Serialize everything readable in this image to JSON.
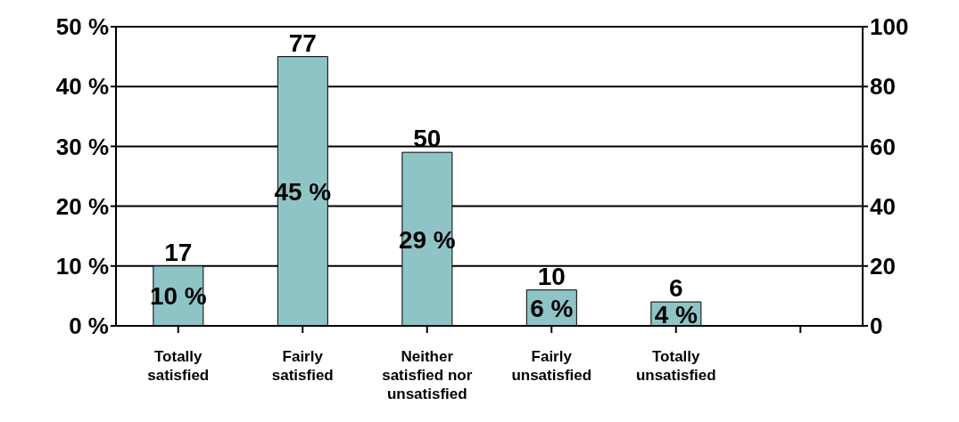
{
  "chart_data": {
    "type": "bar",
    "categories": [
      "Totally satisfied",
      "Fairly satisfied",
      "Neither satisfied nor unsatisfied",
      "Fairly unsatisfied",
      "Totally unsatisfied",
      null
    ],
    "values": [
      10,
      45,
      29,
      6,
      4,
      null
    ],
    "color": "#8fc4c6",
    "value_labels": [
      "10 %",
      "45 %",
      "29 %",
      "6 %",
      "4 %",
      null
    ],
    "ylim": [
      0,
      50
    ],
    "yticks": [
      {
        "value": 0,
        "label": "0 %"
      },
      {
        "value": 10,
        "label": "10 %"
      },
      {
        "value": 20,
        "label": "20 %"
      },
      {
        "value": 30,
        "label": "30 %"
      },
      {
        "value": 40,
        "label": "40 %"
      },
      {
        "value": 50,
        "label": "50 %"
      }
    ],
    "y2lim": [
      0,
      100
    ],
    "y2ticks": [
      0,
      20,
      40,
      60,
      80,
      100
    ],
    "annotations": [
      {
        "text": "17",
        "x": "Totally satisfied",
        "y": 10
      },
      {
        "text": "77",
        "x": "Fairly satisfied",
        "y": 45
      },
      {
        "text": "50",
        "x": "Neither satisfied nor unsatisfied",
        "y": 29
      },
      {
        "text": "10",
        "x": "Fairly unsatisfied",
        "y": 6
      },
      {
        "text": "6",
        "x": "Totally unsatisfied",
        "y": 4
      }
    ],
    "grid": "y",
    "legend": false
  }
}
